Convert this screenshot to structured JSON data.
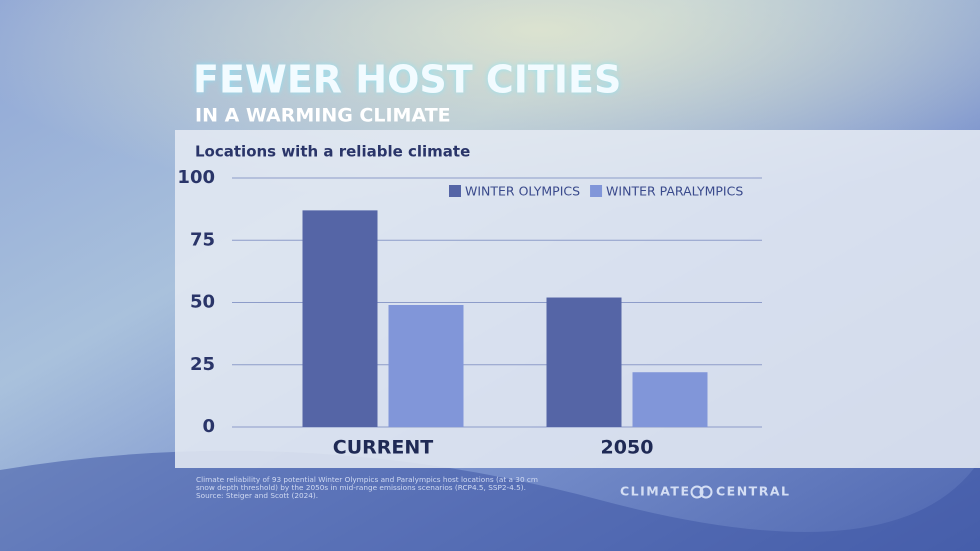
{
  "header": {
    "title": "FEWER HOST CITIES",
    "subtitle": "IN A WARMING CLIMATE"
  },
  "chart_data": {
    "type": "bar",
    "subtitle": "Locations with a reliable climate",
    "categories": [
      "CURRENT",
      "2050"
    ],
    "series": [
      {
        "name": "WINTER OLYMPICS",
        "color": "#5565a6",
        "values": [
          87,
          52
        ]
      },
      {
        "name": "WINTER PARALYMPICS",
        "color": "#8196d9",
        "values": [
          49,
          22
        ]
      }
    ],
    "ylim": [
      0,
      100
    ],
    "yticks": [
      0,
      25,
      50,
      75,
      100
    ],
    "grid": true,
    "legend": "top-right"
  },
  "footnote": [
    "Climate reliability of 93 potential Winter Olympics and Paralympics host locations (at a 30 cm",
    "snow depth threshold) by the 2050s in mid-range emissions scenarios (RCP4.5, SSP2-4.5).",
    "Source: Steiger and Scott (2024)."
  ],
  "logo": [
    "CLIMATE",
    "CENTRAL"
  ]
}
